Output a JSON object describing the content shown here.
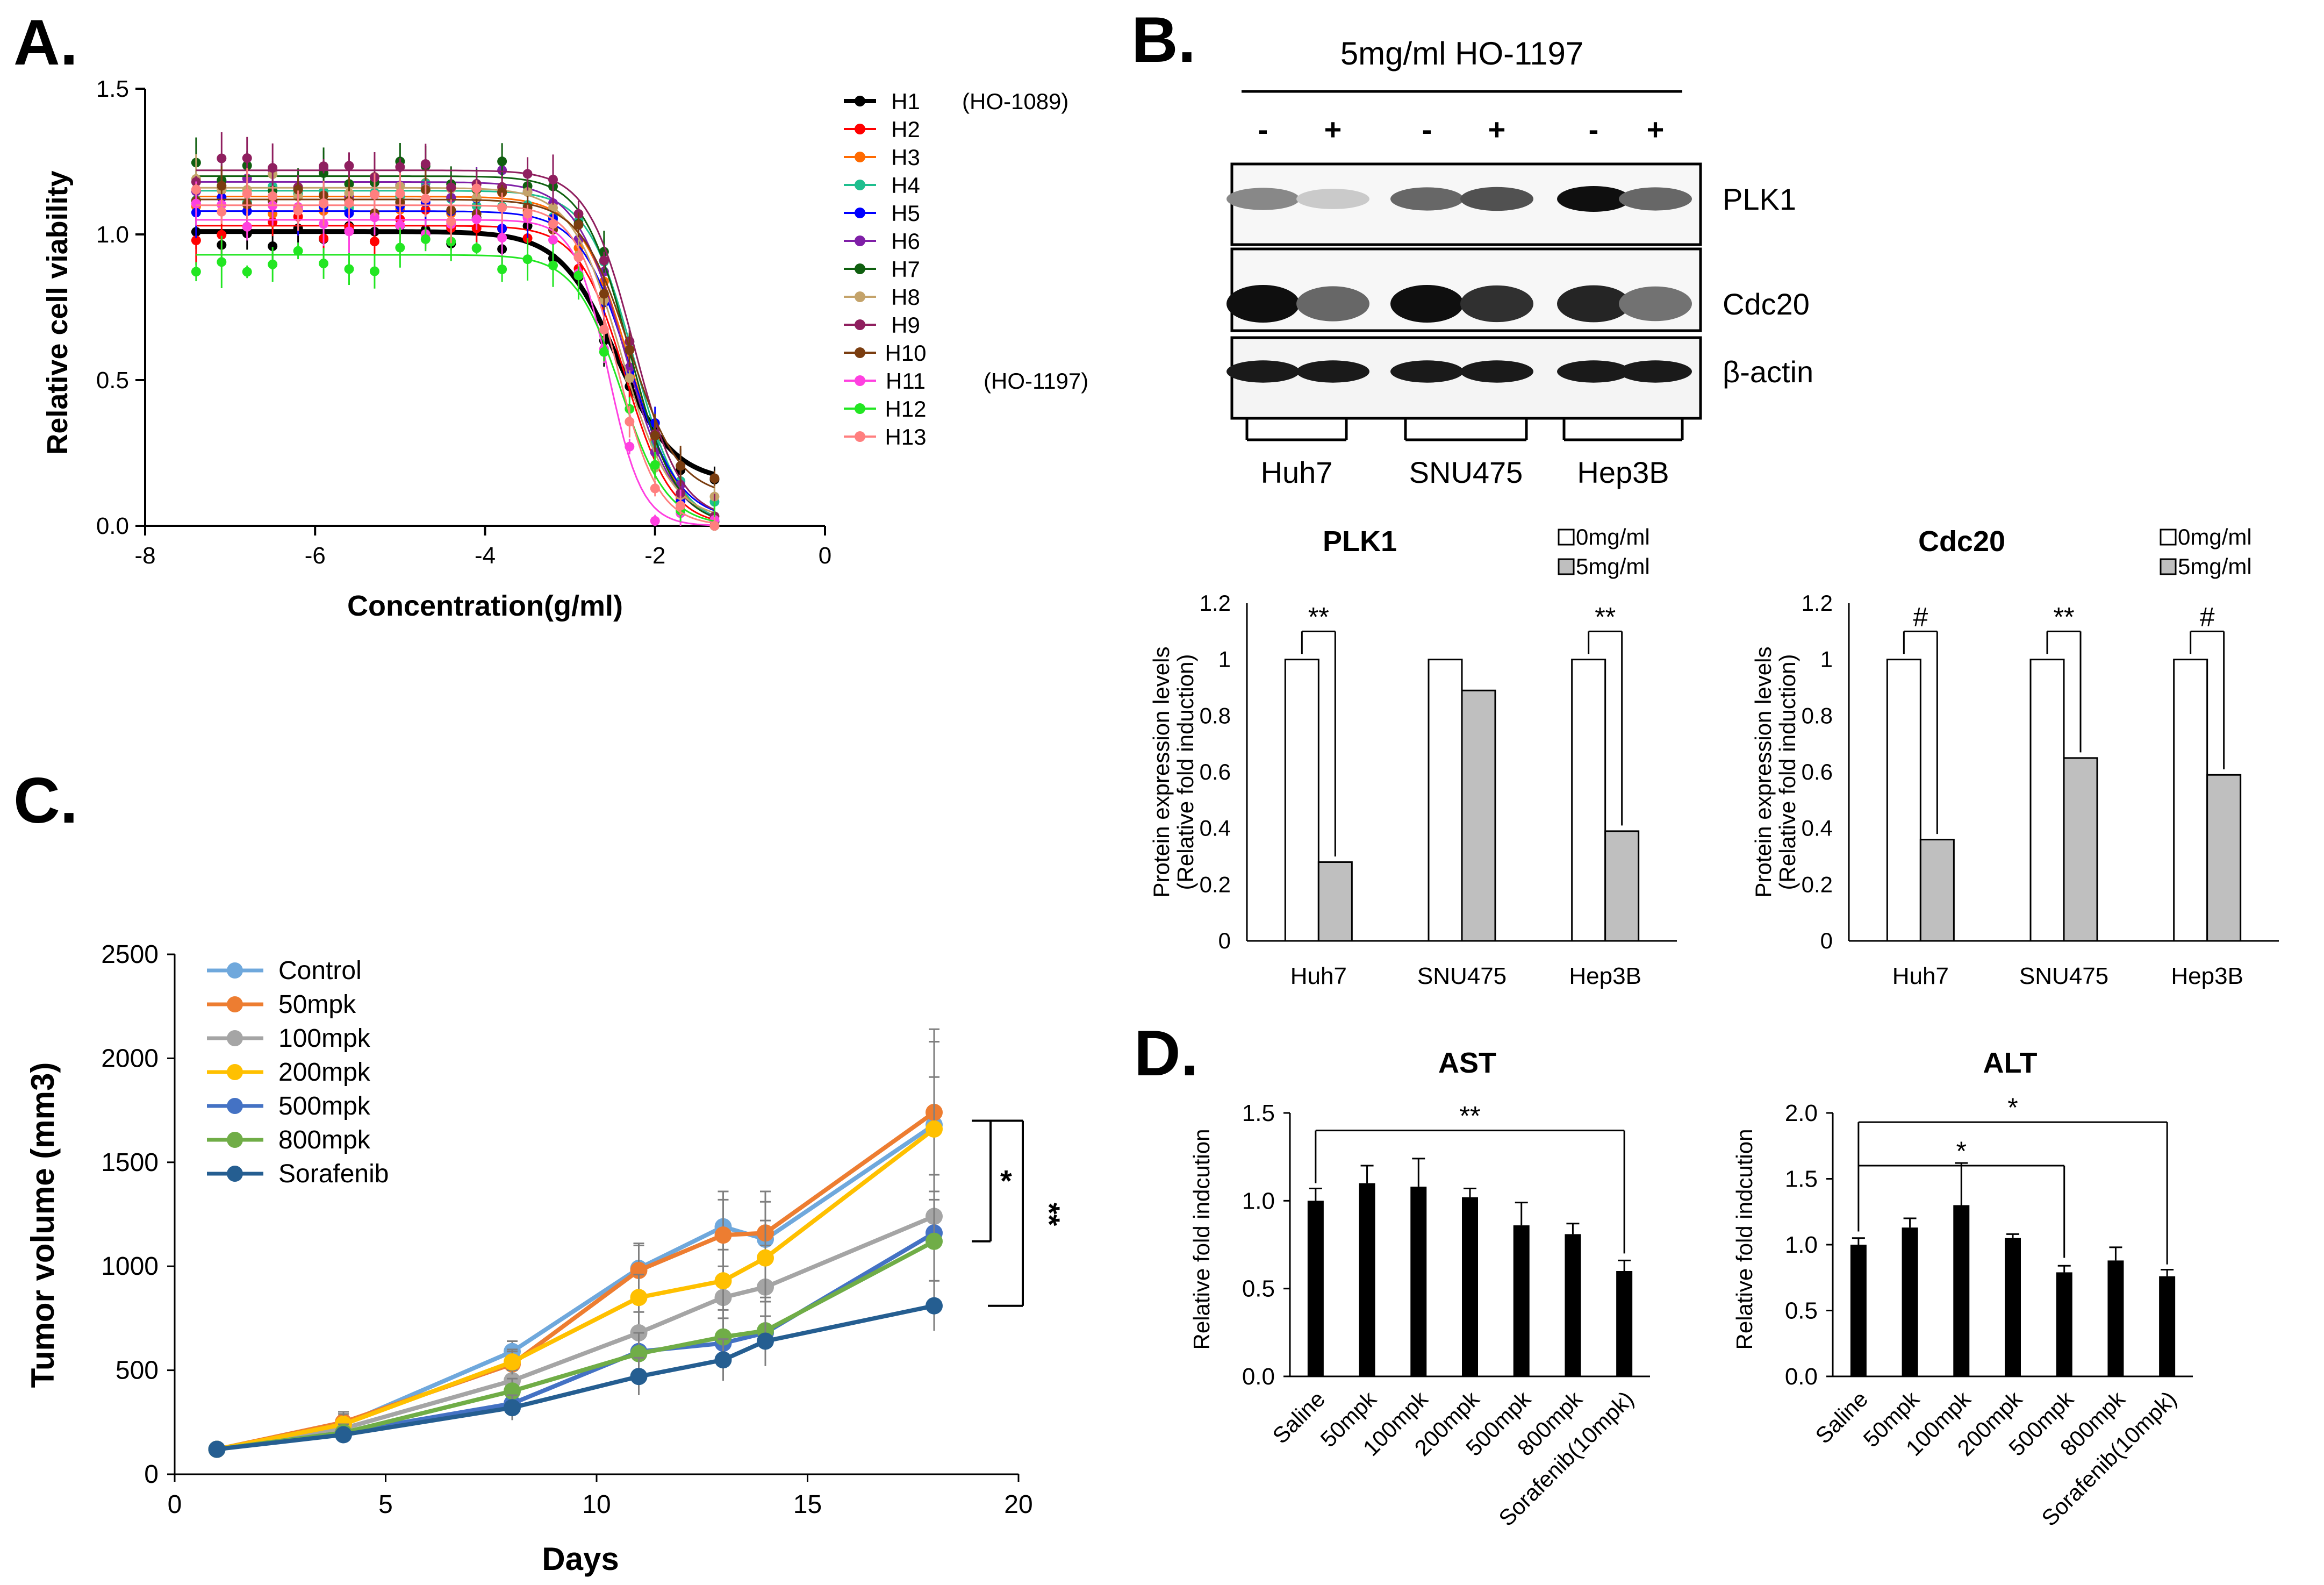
{
  "panels": {
    "a": "A.",
    "b": "B.",
    "c": "C.",
    "d": "D."
  },
  "colors": {
    "H1": "#000000",
    "H2": "#ff0000",
    "H3": "#ff6a00",
    "H4": "#1fbf8f",
    "H5": "#0000ff",
    "H6": "#7f1fa7",
    "H7": "#0f5f0f",
    "H8": "#c4a36a",
    "H9": "#8f1f5f",
    "H10": "#7a3d10",
    "H11": "#ff40e0",
    "H12": "#22e622",
    "H13": "#ff7f7f",
    "Control": "#6fa8dc",
    "50mpk": "#ed7d31",
    "100mpk": "#a5a5a5",
    "200mpk": "#ffc000",
    "500mpk": "#4472c4",
    "800mpk": "#70ad47",
    "Sorafenib": "#255e91",
    "bar_black": "#000000",
    "bar_gray": "#bfbfbf"
  },
  "chart_data": [
    {
      "id": "A",
      "type": "scatter",
      "title": "",
      "xlabel": "Concentration(g/ml)",
      "ylabel": "Relative cell viability",
      "xlim": [
        -8,
        0
      ],
      "ylim": [
        0.0,
        1.5
      ],
      "xticks": [
        "-8",
        "-6",
        "-4",
        "-2",
        "0"
      ],
      "yticks": [
        "0.0",
        "0.5",
        "1.0",
        "1.5"
      ],
      "x": [
        -7.4,
        -7.1,
        -6.8,
        -6.5,
        -6.2,
        -5.9,
        -5.6,
        -5.3,
        -5.0,
        -4.7,
        -4.4,
        -4.1,
        -3.8,
        -3.5,
        -3.2,
        -2.9,
        -2.6,
        -2.3,
        -2.0,
        -1.7,
        -1.3
      ],
      "series": [
        {
          "name": "H1",
          "note": "(HO-1089)",
          "top": 1.01,
          "bottom": 0.15,
          "logIC50": -2.45,
          "slope": 1.3
        },
        {
          "name": "H2",
          "note": "",
          "top": 1.03,
          "bottom": 0.0,
          "logIC50": -2.35,
          "slope": 1.6
        },
        {
          "name": "H3",
          "note": "",
          "top": 1.13,
          "bottom": 0.0,
          "logIC50": -2.3,
          "slope": 1.5
        },
        {
          "name": "H4",
          "note": "",
          "top": 1.15,
          "bottom": 0.0,
          "logIC50": -2.25,
          "slope": 1.6
        },
        {
          "name": "H5",
          "note": "",
          "top": 1.08,
          "bottom": 0.02,
          "logIC50": -2.3,
          "slope": 1.5
        },
        {
          "name": "H6",
          "note": "",
          "top": 1.18,
          "bottom": 0.0,
          "logIC50": -2.35,
          "slope": 1.5
        },
        {
          "name": "H7",
          "note": "",
          "top": 1.2,
          "bottom": 0.0,
          "logIC50": -2.3,
          "slope": 1.6
        },
        {
          "name": "H8",
          "note": "",
          "top": 1.16,
          "bottom": 0.02,
          "logIC50": -2.4,
          "slope": 1.5
        },
        {
          "name": "H9",
          "note": "",
          "top": 1.22,
          "bottom": 0.02,
          "logIC50": -2.25,
          "slope": 1.6
        },
        {
          "name": "H10",
          "note": "",
          "top": 1.12,
          "bottom": 0.1,
          "logIC50": -2.3,
          "slope": 1.5
        },
        {
          "name": "H11",
          "note": "(HO-1197)",
          "top": 1.05,
          "bottom": 0.0,
          "logIC50": -2.55,
          "slope": 2.2
        },
        {
          "name": "H12",
          "note": "",
          "top": 0.93,
          "bottom": 0.0,
          "logIC50": -2.4,
          "slope": 1.6
        },
        {
          "name": "H13",
          "note": "",
          "top": 1.1,
          "bottom": 0.0,
          "logIC50": -2.45,
          "slope": 1.8
        }
      ]
    },
    {
      "id": "B1",
      "type": "bar",
      "title": "PLK1",
      "xlabel": "",
      "ylabel": "Protein expression levels\n(Relative fold induction)",
      "ylim": [
        0,
        1.2
      ],
      "yticks": [
        "0",
        "0.2",
        "0.4",
        "0.6",
        "0.8",
        "1",
        "1.2"
      ],
      "categories": [
        "Huh7",
        "SNU475",
        "Hep3B"
      ],
      "series": [
        {
          "name": "0mg/ml",
          "values": [
            1.0,
            1.0,
            1.0
          ]
        },
        {
          "name": "5mg/ml",
          "values": [
            0.28,
            0.89,
            0.39
          ]
        }
      ],
      "significance": [
        "**",
        "",
        "**"
      ]
    },
    {
      "id": "B2",
      "type": "bar",
      "title": "Cdc20",
      "xlabel": "",
      "ylabel": "Protein expression levels\n(Relative fold induction)",
      "ylim": [
        0,
        1.2
      ],
      "yticks": [
        "0",
        "0.2",
        "0.4",
        "0.6",
        "0.8",
        "1",
        "1.2"
      ],
      "categories": [
        "Huh7",
        "SNU475",
        "Hep3B"
      ],
      "series": [
        {
          "name": "0mg/ml",
          "values": [
            1.0,
            1.0,
            1.0
          ]
        },
        {
          "name": "5mg/ml",
          "values": [
            0.36,
            0.65,
            0.59
          ]
        }
      ],
      "significance": [
        "#",
        "**",
        "#"
      ]
    },
    {
      "id": "C",
      "type": "line",
      "title": "",
      "xlabel": "Days",
      "ylabel": "Tumor volume (mm3)",
      "xlim": [
        0,
        20
      ],
      "ylim": [
        0,
        2500
      ],
      "xticks": [
        "0",
        "5",
        "10",
        "15",
        "20"
      ],
      "yticks": [
        "0",
        "500",
        "1000",
        "1500",
        "2000",
        "2500"
      ],
      "x": [
        1,
        4,
        8,
        11,
        13,
        14,
        18
      ],
      "series": [
        {
          "name": "Control",
          "values": [
            120,
            240,
            590,
            990,
            1190,
            1130,
            1680
          ],
          "err": [
            20,
            40,
            50,
            120,
            170,
            180,
            400
          ]
        },
        {
          "name": "50mpk",
          "values": [
            120,
            250,
            530,
            980,
            1150,
            1160,
            1740
          ],
          "err": [
            20,
            50,
            60,
            120,
            170,
            200,
            400
          ]
        },
        {
          "name": "100mpk",
          "values": [
            120,
            220,
            450,
            680,
            850,
            900,
            1240
          ],
          "err": [
            20,
            40,
            50,
            100,
            150,
            200,
            200
          ]
        },
        {
          "name": "200mpk",
          "values": [
            120,
            240,
            540,
            850,
            930,
            1040,
            1660
          ],
          "err": [
            20,
            50,
            60,
            110,
            150,
            180,
            250
          ]
        },
        {
          "name": "500mpk",
          "values": [
            120,
            200,
            340,
            590,
            630,
            680,
            1160
          ],
          "err": [
            20,
            40,
            60,
            90,
            120,
            150,
            200
          ]
        },
        {
          "name": "800mpk",
          "values": [
            120,
            200,
            400,
            580,
            660,
            690,
            1120
          ],
          "err": [
            20,
            40,
            60,
            100,
            130,
            160,
            200
          ]
        },
        {
          "name": "Sorafenib",
          "values": [
            120,
            190,
            320,
            470,
            550,
            640,
            810
          ],
          "err": [
            20,
            30,
            60,
            90,
            100,
            120,
            120
          ]
        }
      ],
      "significance": [
        "*",
        "**"
      ]
    },
    {
      "id": "D1",
      "type": "bar",
      "title": "AST",
      "xlabel": "",
      "ylabel": "Relative  fold indcution",
      "ylim": [
        0,
        1.5
      ],
      "yticks": [
        "0.0",
        "0.5",
        "1.0",
        "1.5"
      ],
      "categories": [
        "Saline",
        "50mpk",
        "100mpk",
        "200mpk",
        "500mpk",
        "800mpk",
        "Sorafenib(10mpk)"
      ],
      "values": [
        1.0,
        1.1,
        1.08,
        1.02,
        0.86,
        0.81,
        0.6
      ],
      "err": [
        0.07,
        0.1,
        0.16,
        0.05,
        0.13,
        0.06,
        0.06
      ],
      "significance": [
        "**"
      ]
    },
    {
      "id": "D2",
      "type": "bar",
      "title": "ALT",
      "xlabel": "",
      "ylabel": "Relative fold indcution",
      "ylim": [
        0,
        2.0
      ],
      "yticks": [
        "0.0",
        "0.5",
        "1.0",
        "1.5",
        "2.0"
      ],
      "categories": [
        "Saline",
        "50mpk",
        "100mpk",
        "200mpk",
        "500mpk",
        "800mpk",
        "Sorafenib(10mpk)"
      ],
      "values": [
        1.0,
        1.13,
        1.3,
        1.05,
        0.79,
        0.88,
        0.76
      ],
      "err": [
        0.05,
        0.07,
        0.32,
        0.03,
        0.05,
        0.1,
        0.05
      ],
      "significance": [
        "*",
        "*"
      ]
    }
  ],
  "blot": {
    "treatment": "5mg/ml HO-1197",
    "lane_signs": [
      "-",
      "+",
      "-",
      "+",
      "-",
      "+"
    ],
    "cell_lines": [
      "Huh7",
      "SNU475",
      "Hep3B"
    ],
    "rows": [
      {
        "label": "PLK1",
        "intensity": [
          0.45,
          0.15,
          0.6,
          0.7,
          1.0,
          0.6
        ]
      },
      {
        "label": "Cdc20",
        "intensity": [
          1.0,
          0.6,
          1.0,
          0.85,
          0.9,
          0.55
        ]
      },
      {
        "label": "β-actin",
        "intensity": [
          0.95,
          0.95,
          0.95,
          0.95,
          0.95,
          0.95
        ]
      }
    ]
  }
}
